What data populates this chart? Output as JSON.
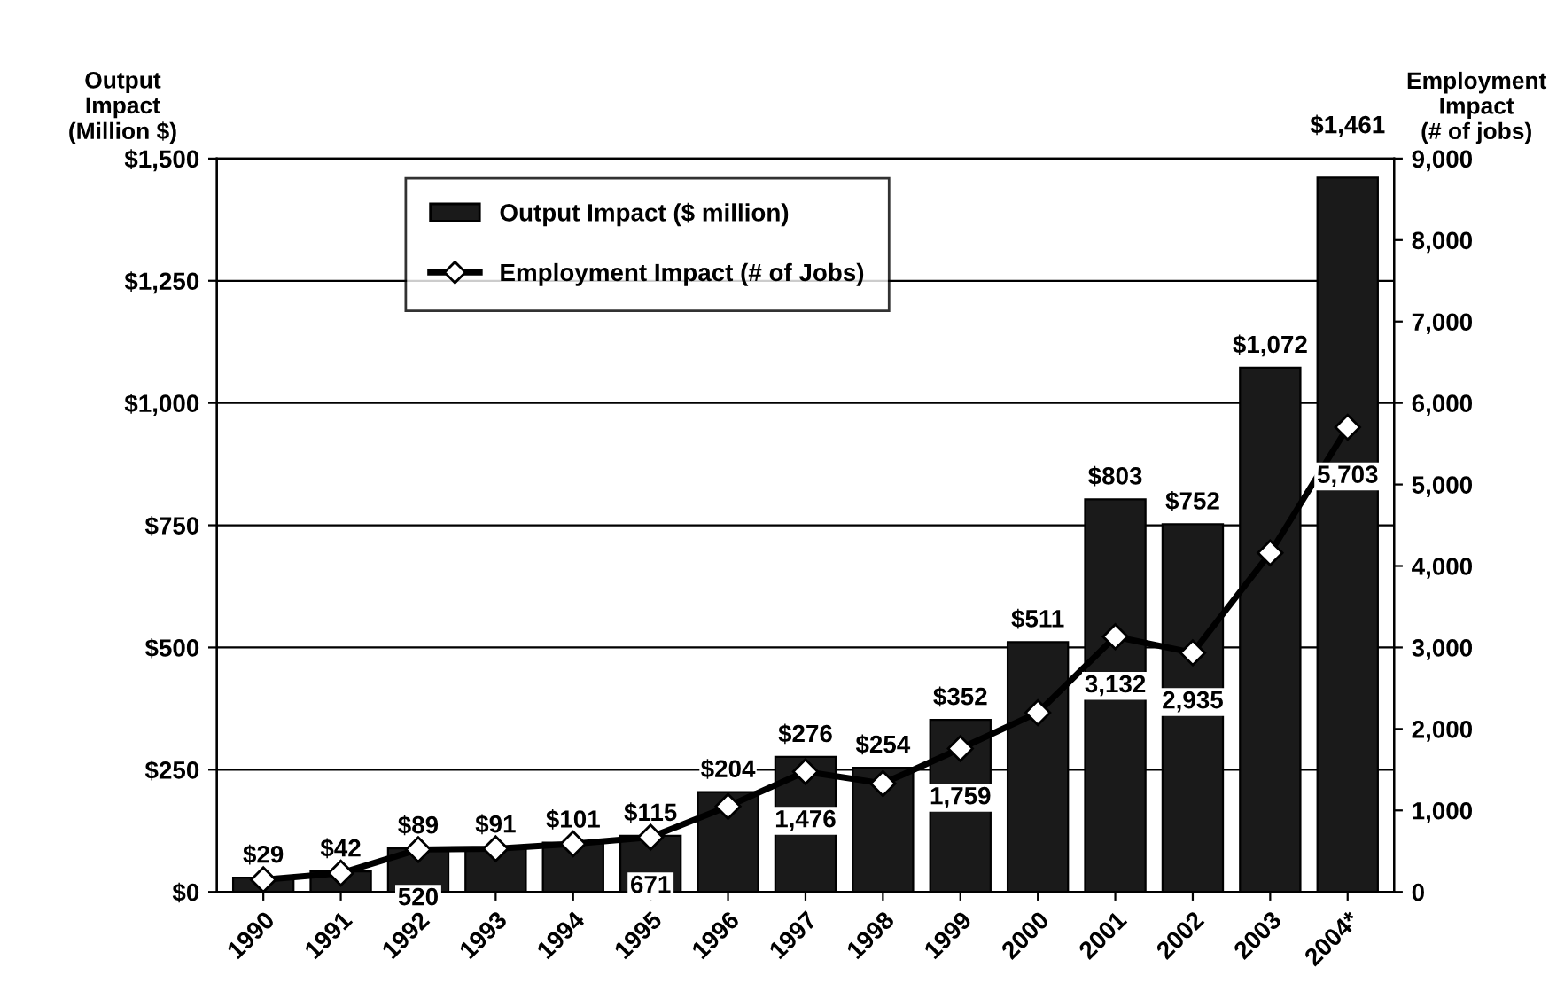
{
  "chart_data": {
    "type": "bar",
    "ylabel": "Output\nImpact\n(Million $)",
    "y2label": "Employment\nImpact\n(# of jobs)",
    "categories": [
      "1990",
      "1991",
      "1992",
      "1993",
      "1994",
      "1995",
      "1996",
      "1997",
      "1998",
      "1999",
      "2000",
      "2001",
      "2002",
      "2003",
      "2004*"
    ],
    "series": [
      {
        "name": "Output Impact ($ million)",
        "color": "#1a1a1a",
        "values": [
          29,
          42,
          89,
          91,
          101,
          115,
          204,
          276,
          254,
          352,
          511,
          803,
          752,
          1072,
          1461
        ],
        "value_labels": [
          "$29",
          "$42",
          "$89",
          "$91",
          "$101",
          "$115",
          "$204",
          "$276",
          "$254",
          "$352",
          "$511",
          "$803",
          "$752",
          "$1,072",
          "$1,461"
        ]
      },
      {
        "name": "Employment Impact (# of Jobs)",
        "type": "line",
        "axis": "y2",
        "color": "#000000",
        "marker": "diamond",
        "values": [
          150,
          230,
          520,
          530,
          590,
          671,
          1050,
          1476,
          1330,
          1759,
          2200,
          3132,
          2935,
          4160,
          5703
        ],
        "value_labels": [
          null,
          null,
          "520",
          null,
          null,
          "671",
          null,
          "1,476",
          null,
          "1,759",
          null,
          "3,132",
          "2,935",
          null,
          "5,703"
        ]
      }
    ],
    "ylim": [
      0,
      1500
    ],
    "yticks": [
      {
        "value": 0,
        "label": "$0"
      },
      {
        "value": 250,
        "label": "$250"
      },
      {
        "value": 500,
        "label": "$500"
      },
      {
        "value": 750,
        "label": "$750"
      },
      {
        "value": 1000,
        "label": "$1,000"
      },
      {
        "value": 1250,
        "label": "$1,250"
      },
      {
        "value": 1500,
        "label": "$1,500"
      }
    ],
    "y2lim": [
      0,
      9000
    ],
    "y2ticks": [
      0,
      {
        "value": 1000,
        "label": "1,000"
      },
      {
        "value": 2000,
        "label": "2,000"
      },
      {
        "value": 3000,
        "label": "3,000"
      },
      {
        "value": 4000,
        "label": "4,000"
      },
      {
        "value": 5000,
        "label": "5,000"
      },
      {
        "value": 6000,
        "label": "6,000"
      },
      {
        "value": 7000,
        "label": "7,000"
      },
      {
        "value": 8000,
        "label": "8,000"
      },
      {
        "value": 9000,
        "label": "9,000"
      }
    ],
    "grid": "y",
    "legend": "top left"
  }
}
